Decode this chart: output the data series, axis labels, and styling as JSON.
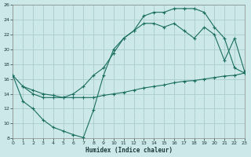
{
  "xlabel": "Humidex (Indice chaleur)",
  "bg_color": "#cce8e8",
  "grid_color": "#aacccc",
  "line_color": "#1a6e60",
  "xlim": [
    0,
    23
  ],
  "ylim": [
    8,
    26
  ],
  "xticks": [
    0,
    1,
    2,
    3,
    4,
    5,
    6,
    7,
    8,
    9,
    10,
    11,
    12,
    13,
    14,
    15,
    16,
    17,
    18,
    19,
    20,
    21,
    22,
    23
  ],
  "yticks": [
    8,
    10,
    12,
    14,
    16,
    18,
    20,
    22,
    24,
    26
  ],
  "line1_x": [
    0,
    1,
    2,
    3,
    4,
    5,
    6,
    7,
    8,
    9,
    10,
    11,
    12,
    13,
    14,
    15,
    16,
    17,
    18,
    19,
    20,
    21,
    22,
    23
  ],
  "line1_y": [
    16.5,
    13.0,
    12.0,
    10.5,
    9.5,
    9.0,
    8.5,
    8.1,
    11.8,
    16.5,
    20.0,
    21.5,
    22.5,
    24.5,
    25.0,
    25.0,
    25.5,
    25.5,
    25.5,
    25.0,
    23.0,
    21.5,
    17.5,
    16.8
  ],
  "line2_x": [
    0,
    1,
    2,
    3,
    4,
    5,
    6,
    7,
    8,
    9,
    10,
    11,
    12,
    13,
    14,
    15,
    16,
    17,
    18,
    19,
    20,
    21,
    22,
    23
  ],
  "line2_y": [
    16.5,
    15.0,
    14.0,
    13.5,
    13.5,
    13.5,
    14.0,
    15.0,
    16.5,
    17.5,
    19.5,
    21.5,
    22.5,
    23.5,
    23.5,
    23.0,
    23.5,
    22.5,
    21.5,
    23.0,
    22.0,
    18.5,
    21.5,
    17.0
  ],
  "line3_x": [
    1,
    2,
    3,
    4,
    5,
    6,
    7,
    8,
    9,
    10,
    11,
    12,
    13,
    14,
    15,
    16,
    17,
    18,
    19,
    20,
    21,
    22,
    23
  ],
  "line3_y": [
    15.0,
    14.5,
    14.0,
    13.8,
    13.5,
    13.5,
    13.5,
    13.5,
    13.8,
    14.0,
    14.2,
    14.5,
    14.8,
    15.0,
    15.2,
    15.5,
    15.7,
    15.8,
    16.0,
    16.2,
    16.4,
    16.5,
    16.8
  ]
}
